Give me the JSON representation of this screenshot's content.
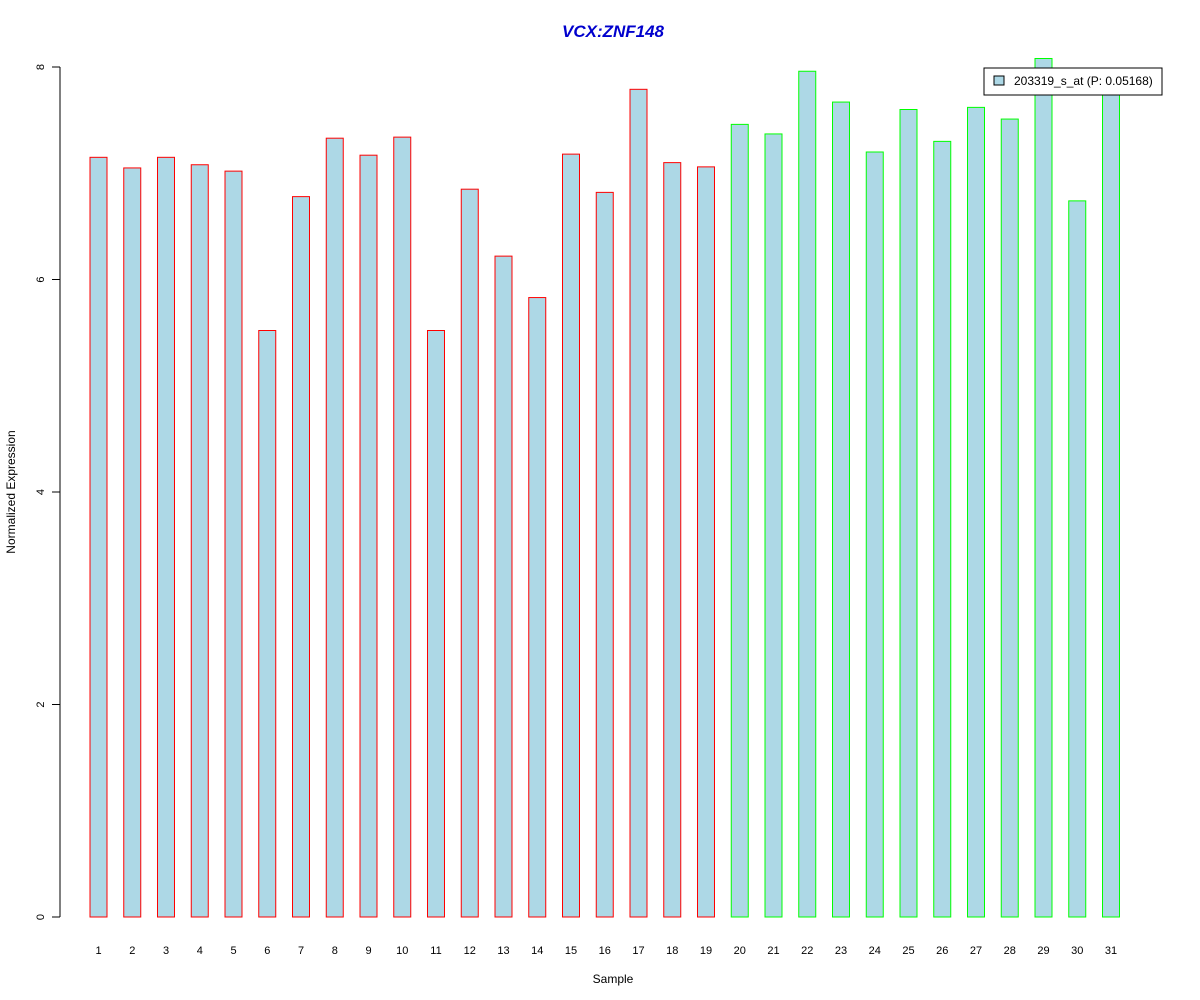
{
  "chart_data": {
    "type": "bar",
    "title": "VCX:ZNF148",
    "xlabel": "Sample",
    "ylabel": "Normalized Expression",
    "ylim": [
      0,
      8
    ],
    "yticks": [
      0,
      2,
      4,
      6,
      8
    ],
    "categories": [
      "1",
      "2",
      "3",
      "4",
      "5",
      "6",
      "7",
      "8",
      "9",
      "10",
      "11",
      "12",
      "13",
      "14",
      "15",
      "16",
      "17",
      "18",
      "19",
      "20",
      "21",
      "22",
      "23",
      "24",
      "25",
      "26",
      "27",
      "28",
      "29",
      "30",
      "31"
    ],
    "values": [
      7.15,
      7.05,
      7.15,
      7.08,
      7.02,
      5.52,
      6.78,
      7.33,
      7.17,
      7.34,
      5.52,
      6.85,
      6.22,
      5.83,
      7.18,
      6.82,
      7.79,
      7.1,
      7.06,
      7.46,
      7.37,
      7.96,
      7.67,
      7.2,
      7.6,
      7.3,
      7.62,
      7.51,
      8.08,
      6.74,
      7.83
    ],
    "groups": [
      "a",
      "a",
      "a",
      "a",
      "a",
      "a",
      "a",
      "a",
      "a",
      "a",
      "a",
      "a",
      "a",
      "a",
      "a",
      "a",
      "a",
      "a",
      "a",
      "b",
      "b",
      "b",
      "b",
      "b",
      "b",
      "b",
      "b",
      "b",
      "b",
      "b",
      "b"
    ],
    "colors": {
      "fill": "#add8e6",
      "group_a_border": "#ff0000",
      "group_b_border": "#00ff00",
      "title": "#0000cd"
    },
    "legend": {
      "label": "203319_s_at (P: 0.05168)",
      "position": "top-right"
    },
    "grid": false
  }
}
